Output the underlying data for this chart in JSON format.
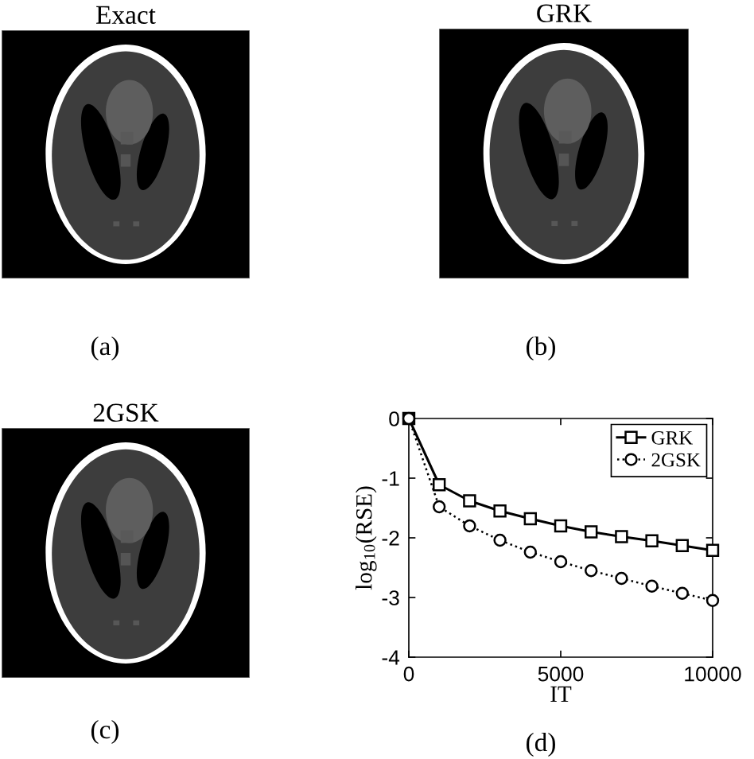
{
  "chart_data": [
    {
      "type": "other",
      "title": "Exact",
      "annotations": [
        "(a)"
      ]
    },
    {
      "type": "other",
      "title": "GRK",
      "annotations": [
        "(b)"
      ]
    },
    {
      "type": "other",
      "title": "2GSK",
      "annotations": [
        "(c)"
      ]
    },
    {
      "type": "line",
      "xlabel": "IT",
      "ylabel": "log$_{10}$(RSE)",
      "annotations": [
        "(d)"
      ],
      "x": [
        0,
        1000,
        2000,
        3000,
        4000,
        5000,
        6000,
        7000,
        8000,
        9000,
        10000
      ],
      "series": [
        {
          "name": "GRK",
          "color": "#000000",
          "marker": "square",
          "line_style": "solid",
          "values": [
            0,
            -1.11,
            -1.38,
            -1.55,
            -1.68,
            -1.8,
            -1.9,
            -1.98,
            -2.05,
            -2.13,
            -2.21
          ]
        },
        {
          "name": "2GSK",
          "color": "#000000",
          "marker": "circle",
          "line_style": "dotted",
          "values": [
            0,
            -1.48,
            -1.8,
            -2.04,
            -2.24,
            -2.4,
            -2.55,
            -2.68,
            -2.81,
            -2.93,
            -3.05
          ]
        }
      ],
      "xlim": [
        0,
        10000
      ],
      "ylim": [
        -4,
        0
      ],
      "xticks": [
        0,
        5000,
        10000
      ],
      "yticks": [
        -4,
        -3,
        -2,
        -1,
        0
      ],
      "legend": "top right"
    }
  ]
}
